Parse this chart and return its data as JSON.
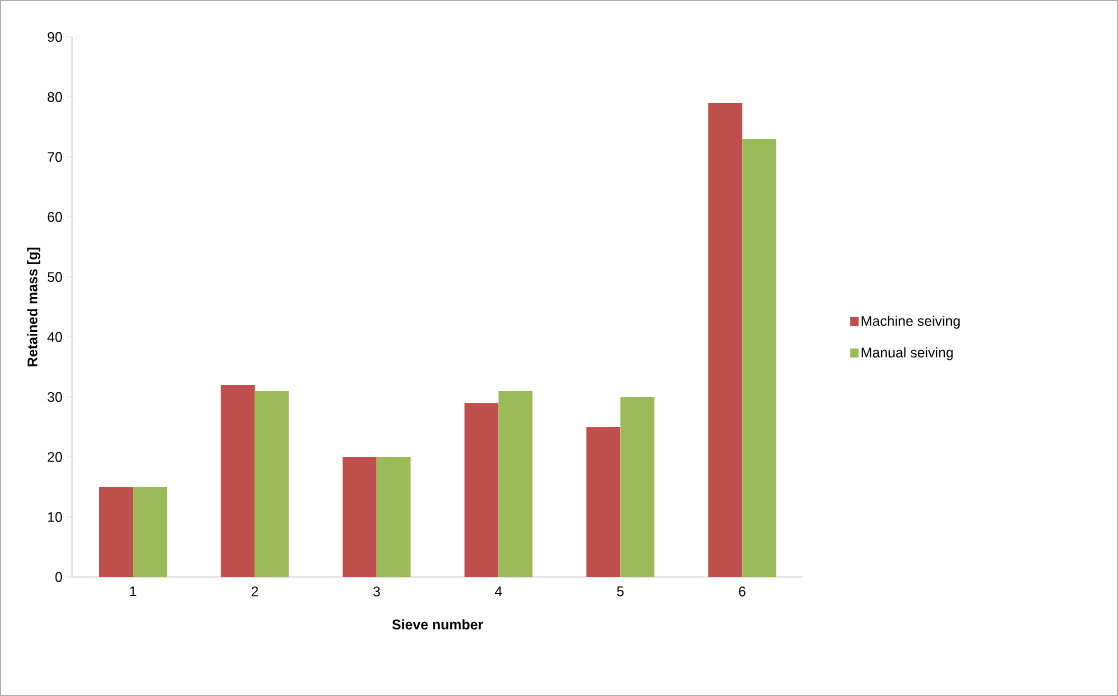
{
  "chart_data": {
    "type": "bar",
    "xlabel": "Sieve number",
    "ylabel": "Retained mass [g]",
    "categories": [
      "1",
      "2",
      "3",
      "4",
      "5",
      "6"
    ],
    "series": [
      {
        "name": "Machine seiving",
        "color": "#c0504d",
        "values": [
          15,
          32,
          20,
          29,
          25,
          79
        ]
      },
      {
        "name": "Manual seiving",
        "color": "#9bbb59",
        "values": [
          15,
          31,
          20,
          31,
          30,
          73
        ]
      }
    ],
    "ylim": [
      0,
      90
    ],
    "yticks": [
      0,
      10,
      20,
      30,
      40,
      50,
      60,
      70,
      80,
      90
    ],
    "grid": false,
    "legend": "right"
  }
}
